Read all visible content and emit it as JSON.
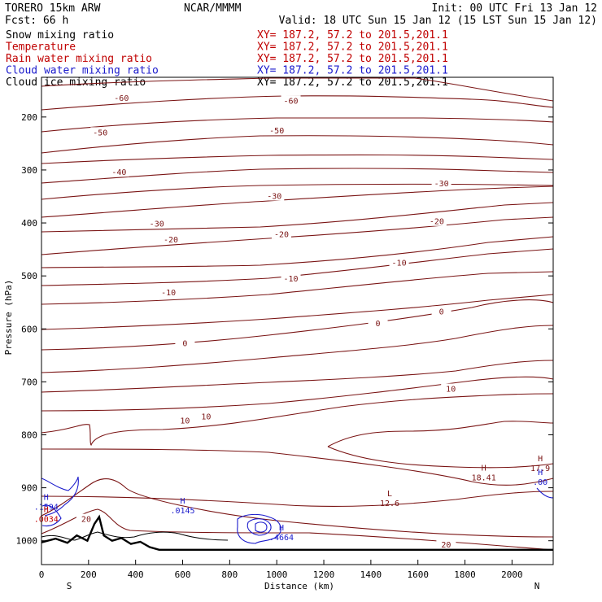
{
  "header": {
    "model": "TORERO  15km ARW",
    "org": "NCAR/MMMM",
    "init": "Init: 00 UTC Fri 13 Jan 12",
    "fcst": "Fcst:   66 h",
    "valid": "Valid: 18 UTC Sun 15 Jan 12 (15 LST Sun 15 Jan 12)"
  },
  "fields": [
    {
      "name": "Snow mixing ratio",
      "xy": "XY= 187.2, 57.2 to 201.5,201.1",
      "color": "#000000",
      "xy_color": "#c00000"
    },
    {
      "name": "Temperature",
      "xy": "XY= 187.2, 57.2 to 201.5,201.1",
      "color": "#c00000",
      "xy_color": "#c00000"
    },
    {
      "name": "Rain water mixing ratio",
      "xy": "XY= 187.2, 57.2 to 201.5,201.1",
      "color": "#c00000",
      "xy_color": "#c00000"
    },
    {
      "name": "Cloud water mixing ratio",
      "xy": "XY= 187.2, 57.2 to 201.5,201.1",
      "color": "#1a1acc",
      "xy_color": "#1a1acc"
    },
    {
      "name": "Cloud ice mixing ratio",
      "xy": "XY= 187.2, 57.2 to 201.5,201.1",
      "color": "#000000",
      "xy_color": "#000000"
    }
  ],
  "chart_data": {
    "type": "contour",
    "ylabel": "Pressure (hPa)",
    "xlabel": "Distance (km)",
    "x_ticks": [
      0,
      200,
      400,
      600,
      800,
      1000,
      1200,
      1400,
      1600,
      1800,
      2000
    ],
    "y_ticks": [
      200,
      300,
      400,
      500,
      600,
      700,
      800,
      900,
      1000
    ],
    "xlim": [
      0,
      2175
    ],
    "ylim": [
      1045,
      125
    ],
    "y_inverted": true,
    "left_end_label": "S",
    "right_end_label": "N",
    "temperature_contours": [
      {
        "value": -60,
        "labels": [
          {
            "text": "-60",
            "x": 340,
            "p": 165
          },
          {
            "text": "-60",
            "x": 1060,
            "p": 170
          }
        ]
      },
      {
        "value": -50,
        "labels": [
          {
            "text": "-50",
            "x": 250,
            "p": 230
          },
          {
            "text": "-50",
            "x": 1000,
            "p": 226
          }
        ]
      },
      {
        "value": -40,
        "labels": [
          {
            "text": "-40",
            "x": 330,
            "p": 305
          }
        ]
      },
      {
        "value": -30,
        "labels": [
          {
            "text": "-30",
            "x": 490,
            "p": 402
          },
          {
            "text": "-30",
            "x": 990,
            "p": 350
          },
          {
            "text": "-30",
            "x": 1700,
            "p": 326
          }
        ]
      },
      {
        "value": -20,
        "labels": [
          {
            "text": "-20",
            "x": 550,
            "p": 432
          },
          {
            "text": "-20",
            "x": 1020,
            "p": 422
          },
          {
            "text": "-20",
            "x": 1680,
            "p": 398
          }
        ]
      },
      {
        "value": -10,
        "labels": [
          {
            "text": "-10",
            "x": 540,
            "p": 532
          },
          {
            "text": "-10",
            "x": 1060,
            "p": 506
          },
          {
            "text": "-10",
            "x": 1520,
            "p": 476
          }
        ]
      },
      {
        "value": 0,
        "labels": [
          {
            "text": "0",
            "x": 610,
            "p": 628
          },
          {
            "text": "0",
            "x": 1430,
            "p": 590
          },
          {
            "text": "0",
            "x": 1700,
            "p": 568
          }
        ]
      },
      {
        "value": 10,
        "labels": [
          {
            "text": "10",
            "x": 610,
            "p": 774
          },
          {
            "text": "10",
            "x": 700,
            "p": 766
          },
          {
            "text": "10",
            "x": 1740,
            "p": 714
          }
        ]
      },
      {
        "value": 20,
        "labels": [
          {
            "text": "20",
            "x": 190,
            "p": 960
          },
          {
            "text": "20",
            "x": 1720,
            "p": 1008
          }
        ]
      }
    ],
    "markers": [
      {
        "kind": "H",
        "value": ".0145",
        "x": 600,
        "p": 942,
        "color": "#1a1acc"
      },
      {
        "kind": "H",
        "value": ".4664",
        "x": 1020,
        "p": 993,
        "color": "#1a1acc"
      },
      {
        "kind": "L",
        "value": "12.6",
        "x": 1480,
        "p": 928,
        "color": "#7a1414"
      },
      {
        "kind": "H",
        "value": "18.41",
        "x": 1880,
        "p": 880,
        "color": "#7a1414"
      },
      {
        "kind": "H",
        "value": "17.9",
        "x": 2120,
        "p": 862,
        "color": "#7a1414"
      },
      {
        "kind": "H",
        "value": ".00",
        "x": 2120,
        "p": 888,
        "color": "#1a1acc"
      },
      {
        "kind": "H",
        "value": ".1594",
        "x": 20,
        "p": 935,
        "color": "#1a1acc"
      },
      {
        "kind": "H",
        "value": ".0034",
        "x": 20,
        "p": 958,
        "color": "#c00000"
      }
    ],
    "terrain_surface_p": [
      [
        0,
        1003
      ],
      [
        60,
        996
      ],
      [
        110,
        1004
      ],
      [
        150,
        990
      ],
      [
        195,
        1000
      ],
      [
        225,
        968
      ],
      [
        245,
        955
      ],
      [
        265,
        990
      ],
      [
        300,
        1000
      ],
      [
        340,
        995
      ],
      [
        380,
        1006
      ],
      [
        420,
        1002
      ],
      [
        460,
        1012
      ],
      [
        500,
        1017
      ],
      [
        2175,
        1017
      ]
    ]
  }
}
